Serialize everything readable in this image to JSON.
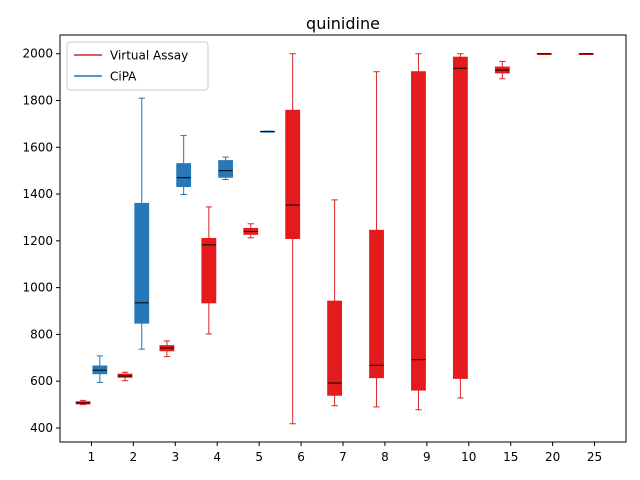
{
  "chart_data": {
    "type": "box",
    "title": "quinidine",
    "xlabel": "",
    "ylabel": "",
    "categories": [
      "1",
      "2",
      "3",
      "4",
      "5",
      "6",
      "7",
      "8",
      "9",
      "10",
      "15",
      "20",
      "25"
    ],
    "ylim": [
      340,
      2080
    ],
    "yticks": [
      400,
      600,
      800,
      1000,
      1200,
      1400,
      1600,
      1800,
      2000
    ],
    "grid": false,
    "legend_position": "top-left",
    "series": [
      {
        "name": "Virtual Assay",
        "color": "#d62728",
        "fill": "#e41a1c",
        "boxes": [
          {
            "category": "1",
            "min": 500,
            "q1": 503,
            "median": 507,
            "q3": 512,
            "max": 518
          },
          {
            "category": "2",
            "min": 602,
            "q1": 617,
            "median": 622,
            "q3": 630,
            "max": 638
          },
          {
            "category": "3",
            "min": 705,
            "q1": 730,
            "median": 742,
            "q3": 752,
            "max": 772
          },
          {
            "category": "4",
            "min": 802,
            "q1": 935,
            "median": 1183,
            "q3": 1210,
            "max": 1345
          },
          {
            "category": "5",
            "min": 1213,
            "q1": 1228,
            "median": 1240,
            "q3": 1253,
            "max": 1273
          },
          {
            "category": "6",
            "min": 418,
            "q1": 1210,
            "median": 1353,
            "q3": 1758,
            "max": 2000
          },
          {
            "category": "7",
            "min": 495,
            "q1": 540,
            "median": 592,
            "q3": 942,
            "max": 1375
          },
          {
            "category": "8",
            "min": 490,
            "q1": 615,
            "median": 668,
            "q3": 1245,
            "max": 1923
          },
          {
            "category": "9",
            "min": 478,
            "q1": 562,
            "median": 692,
            "q3": 1923,
            "max": 2000
          },
          {
            "category": "10",
            "min": 528,
            "q1": 612,
            "median": 1938,
            "q3": 1985,
            "max": 2000
          },
          {
            "category": "15",
            "min": 1893,
            "q1": 1918,
            "median": 1930,
            "q3": 1943,
            "max": 1967
          },
          {
            "category": "20",
            "min": 1998,
            "q1": 1998,
            "median": 2000,
            "q3": 2000,
            "max": 2000
          },
          {
            "category": "25",
            "min": 1998,
            "q1": 1998,
            "median": 2000,
            "q3": 2000,
            "max": 2000
          }
        ]
      },
      {
        "name": "CiPA",
        "color": "#1f77b4",
        "fill": "#2878b8",
        "boxes": [
          {
            "category": "1",
            "min": 595,
            "q1": 632,
            "median": 647,
            "q3": 665,
            "max": 708
          },
          {
            "category": "2",
            "min": 737,
            "q1": 848,
            "median": 935,
            "q3": 1360,
            "max": 1810
          },
          {
            "category": "3",
            "min": 1398,
            "q1": 1432,
            "median": 1470,
            "q3": 1530,
            "max": 1650
          },
          {
            "category": "4",
            "min": 1462,
            "q1": 1472,
            "median": 1500,
            "q3": 1543,
            "max": 1558
          },
          {
            "category": "5",
            "min": 1668,
            "q1": 1668,
            "median": 1668,
            "q3": 1668,
            "max": 1668
          }
        ]
      }
    ]
  }
}
